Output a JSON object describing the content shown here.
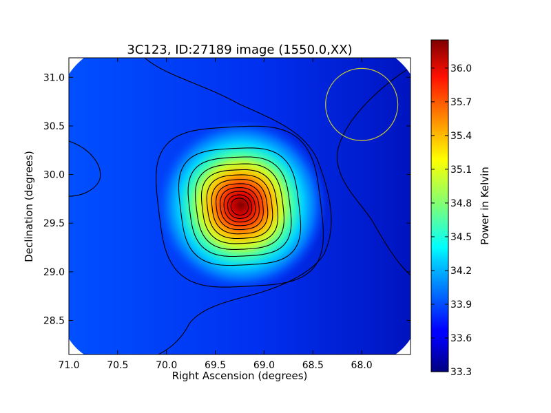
{
  "chart_data": {
    "type": "heatmap",
    "title": "3C123, ID:27189 image (1550.0,XX)",
    "xlabel": "Right Ascension (degrees)",
    "ylabel": "Declination (degrees)",
    "xlim": [
      71.0,
      67.5
    ],
    "ylim": [
      28.15,
      31.2
    ],
    "x_ticks": [
      "71.0",
      "70.5",
      "70.0",
      "69.5",
      "69.0",
      "68.5",
      "68.0"
    ],
    "x_tick_values": [
      71.0,
      70.5,
      70.0,
      69.5,
      69.0,
      68.5,
      68.0
    ],
    "y_ticks": [
      "28.5",
      "29.0",
      "29.5",
      "30.0",
      "30.5",
      "31.0"
    ],
    "y_tick_values": [
      28.5,
      29.0,
      29.5,
      30.0,
      30.5,
      31.0
    ],
    "peak": {
      "ra": 69.25,
      "dec": 29.67,
      "value": 36.2
    },
    "background_value": 33.65,
    "beam_circle": {
      "ra": 68.0,
      "dec": 30.72,
      "radius_deg": 0.37,
      "color": "#c8c832"
    },
    "contour_levels": [
      33.85,
      34.05,
      34.25,
      34.45,
      34.65,
      34.85,
      35.05,
      35.25,
      35.45,
      35.65,
      35.85,
      36.05
    ],
    "colorbar": {
      "label": "Power in Kelvin",
      "colormap": "jet",
      "min": 33.3,
      "max": 36.25,
      "ticks": [
        "33.3",
        "33.6",
        "33.9",
        "34.2",
        "34.5",
        "34.8",
        "35.1",
        "35.4",
        "35.7",
        "36.0"
      ],
      "tick_values": [
        33.3,
        33.6,
        33.9,
        34.2,
        34.5,
        34.8,
        35.1,
        35.4,
        35.7,
        36.0
      ]
    }
  }
}
